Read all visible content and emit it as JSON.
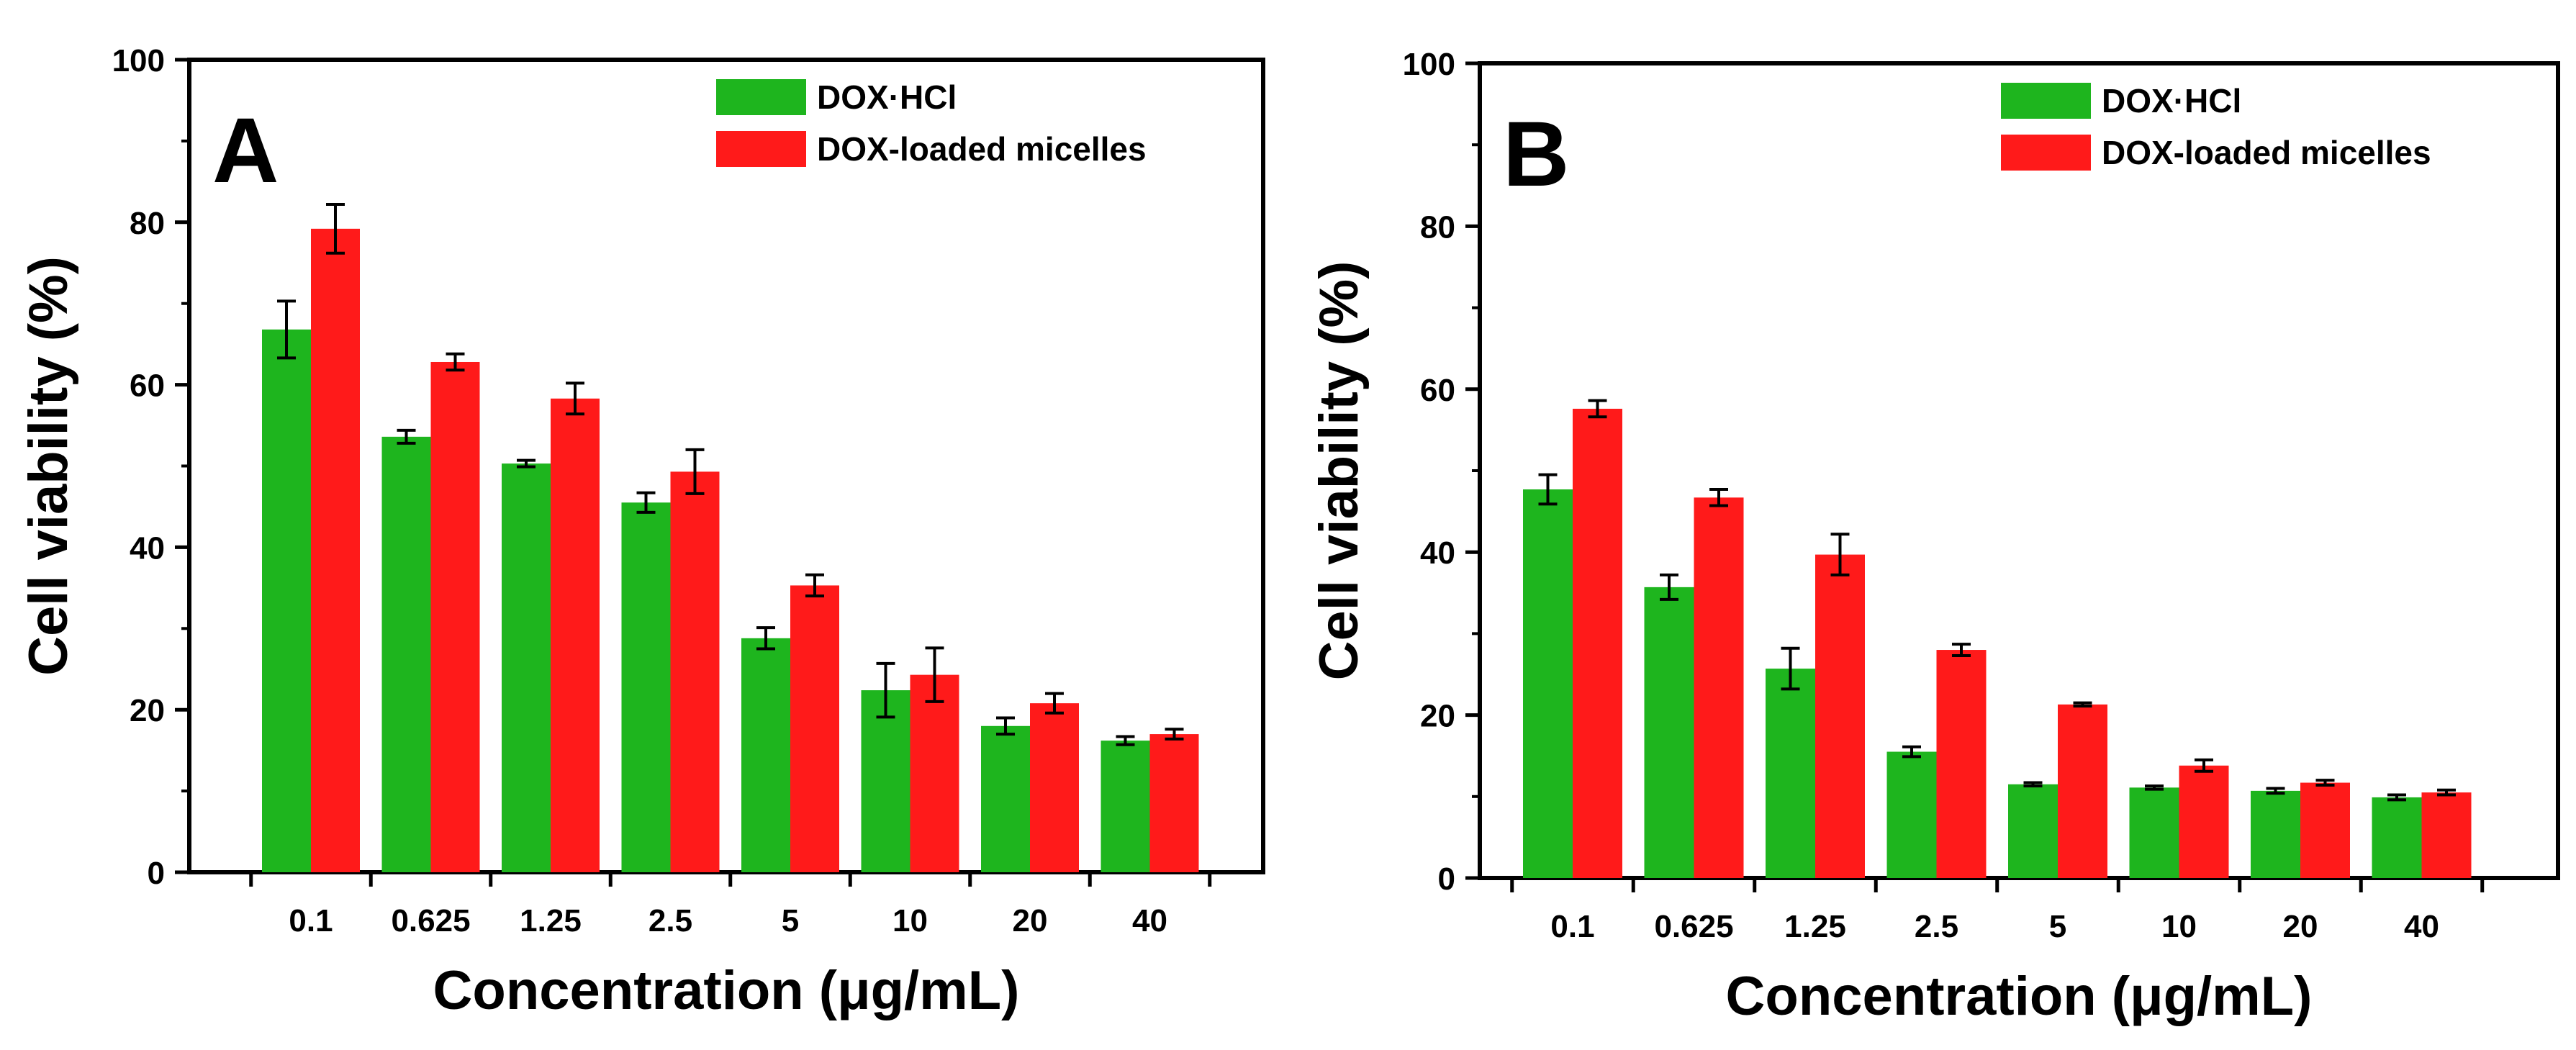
{
  "colors": {
    "series_1": "#1eb51e",
    "series_2": "#ff1a1a",
    "axis": "#000000",
    "background": "#ffffff"
  },
  "chart_data": [
    {
      "panel": "A",
      "type": "bar",
      "title": "",
      "xlabel": "Concentration (μg/mL)",
      "ylabel": "Cell viability (%)",
      "ylim": [
        0,
        100
      ],
      "yticks": [
        "0",
        "20",
        "40",
        "60",
        "80",
        "100"
      ],
      "grid": false,
      "legend_position": "top-right",
      "categories": [
        "0.1",
        "0.625",
        "1.25",
        "2.5",
        "5",
        "10",
        "20",
        "40"
      ],
      "series": [
        {
          "name": "DOX·HCl",
          "values": [
            66.8,
            53.6,
            50.3,
            45.5,
            28.8,
            22.4,
            18.0,
            16.2
          ],
          "errors": [
            3.5,
            0.8,
            0.4,
            1.2,
            1.3,
            3.3,
            1.0,
            0.5
          ]
        },
        {
          "name": "DOX-loaded micelles",
          "values": [
            79.2,
            62.8,
            58.3,
            49.3,
            35.3,
            24.3,
            20.8,
            17.0
          ],
          "errors": [
            3.0,
            1.0,
            1.9,
            2.7,
            1.3,
            3.3,
            1.2,
            0.6
          ]
        }
      ]
    },
    {
      "panel": "B",
      "type": "bar",
      "title": "",
      "xlabel": "Concentration (μg/mL)",
      "ylabel": "Cell viability (%)",
      "ylim": [
        0,
        100
      ],
      "yticks": [
        "0",
        "20",
        "40",
        "60",
        "80",
        "100"
      ],
      "grid": false,
      "legend_position": "top-right",
      "categories": [
        "0.1",
        "0.625",
        "1.25",
        "2.5",
        "5",
        "10",
        "20",
        "40"
      ],
      "series": [
        {
          "name": "DOX·HCl",
          "values": [
            47.7,
            35.7,
            25.7,
            15.5,
            11.5,
            11.1,
            10.7,
            9.9
          ],
          "errors": [
            1.8,
            1.5,
            2.5,
            0.6,
            0.2,
            0.2,
            0.3,
            0.3
          ]
        },
        {
          "name": "DOX-loaded micelles",
          "values": [
            57.6,
            46.7,
            39.7,
            28.0,
            21.3,
            13.8,
            11.7,
            10.5
          ],
          "errors": [
            1.0,
            1.0,
            2.5,
            0.7,
            0.2,
            0.7,
            0.3,
            0.3
          ]
        }
      ]
    }
  ]
}
